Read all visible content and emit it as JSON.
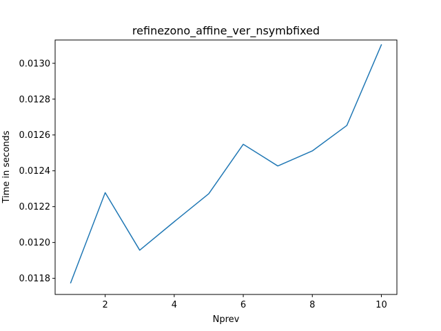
{
  "chart_data": {
    "type": "line",
    "title": "refinezono_affine_ver_nsymbfixed",
    "xlabel": "Nprev",
    "ylabel": "Time in seconds",
    "x": [
      1,
      2,
      3,
      4,
      5,
      6,
      7,
      8,
      9,
      10
    ],
    "series": [
      {
        "values": [
          0.011775,
          0.012278,
          0.011957,
          0.012116,
          0.012272,
          0.012548,
          0.012427,
          0.012511,
          0.012653,
          0.013103
        ],
        "color": "#1f77b4"
      }
    ],
    "xlim": [
      0.55,
      10.45
    ],
    "ylim": [
      0.01171,
      0.01313
    ],
    "xticks": [
      2,
      4,
      6,
      8,
      10
    ],
    "xtick_labels": [
      "2",
      "4",
      "6",
      "8",
      "10"
    ],
    "yticks": [
      0.0118,
      0.012,
      0.0122,
      0.0124,
      0.0126,
      0.0128,
      0.013
    ],
    "ytick_labels": [
      "0.0118",
      "0.0120",
      "0.0122",
      "0.0124",
      "0.0126",
      "0.0128",
      "0.0130"
    ],
    "grid": false,
    "legend": "none"
  }
}
